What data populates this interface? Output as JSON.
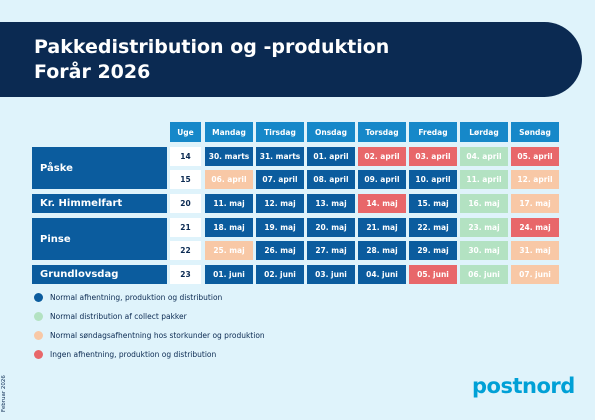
{
  "header": {
    "title_line1": "Pakkedistribution og -produktion",
    "title_line2": "Forår 2026"
  },
  "table": {
    "columns": [
      "Uge",
      "Mandag",
      "Tirsdag",
      "Onsdag",
      "Torsdag",
      "Fredag",
      "Lørdag",
      "Søndag"
    ],
    "groups": [
      {
        "label": "Påske",
        "weeks": [
          {
            "week": "14",
            "cells": [
              {
                "text": "30. marts",
                "color": "#0b5c9e"
              },
              {
                "text": "31. marts",
                "color": "#0b5c9e"
              },
              {
                "text": "01. april",
                "color": "#0b5c9e"
              },
              {
                "text": "02. april",
                "color": "#e8676a"
              },
              {
                "text": "03. april",
                "color": "#e8676a"
              },
              {
                "text": "04. april",
                "color": "#b3e2c2"
              },
              {
                "text": "05. april",
                "color": "#e8676a"
              }
            ]
          },
          {
            "week": "15",
            "cells": [
              {
                "text": "06. april",
                "color": "#f8c8a6"
              },
              {
                "text": "07. april",
                "color": "#0b5c9e"
              },
              {
                "text": "08. april",
                "color": "#0b5c9e"
              },
              {
                "text": "09. april",
                "color": "#0b5c9e"
              },
              {
                "text": "10. april",
                "color": "#0b5c9e"
              },
              {
                "text": "11. april",
                "color": "#b3e2c2"
              },
              {
                "text": "12. april",
                "color": "#f8c8a6"
              }
            ]
          }
        ]
      },
      {
        "label": "Kr. Himmelfart",
        "weeks": [
          {
            "week": "20",
            "cells": [
              {
                "text": "11. maj",
                "color": "#0b5c9e"
              },
              {
                "text": "12. maj",
                "color": "#0b5c9e"
              },
              {
                "text": "13. maj",
                "color": "#0b5c9e"
              },
              {
                "text": "14. maj",
                "color": "#e8676a"
              },
              {
                "text": "15. maj",
                "color": "#0b5c9e"
              },
              {
                "text": "16. maj",
                "color": "#b3e2c2"
              },
              {
                "text": "17. maj",
                "color": "#f8c8a6"
              }
            ]
          }
        ]
      },
      {
        "label": "Pinse",
        "weeks": [
          {
            "week": "21",
            "cells": [
              {
                "text": "18. maj",
                "color": "#0b5c9e"
              },
              {
                "text": "19. maj",
                "color": "#0b5c9e"
              },
              {
                "text": "20. maj",
                "color": "#0b5c9e"
              },
              {
                "text": "21. maj",
                "color": "#0b5c9e"
              },
              {
                "text": "22. maj",
                "color": "#0b5c9e"
              },
              {
                "text": "23. maj",
                "color": "#b3e2c2"
              },
              {
                "text": "24. maj",
                "color": "#e8676a"
              }
            ]
          },
          {
            "week": "22",
            "cells": [
              {
                "text": "25. maj",
                "color": "#f8c8a6"
              },
              {
                "text": "26. maj",
                "color": "#0b5c9e"
              },
              {
                "text": "27. maj",
                "color": "#0b5c9e"
              },
              {
                "text": "28. maj",
                "color": "#0b5c9e"
              },
              {
                "text": "29. maj",
                "color": "#0b5c9e"
              },
              {
                "text": "30. maj",
                "color": "#b3e2c2"
              },
              {
                "text": "31. maj",
                "color": "#f8c8a6"
              }
            ]
          }
        ]
      },
      {
        "label": "Grundlovsdag",
        "weeks": [
          {
            "week": "23",
            "cells": [
              {
                "text": "01. juni",
                "color": "#0b5c9e"
              },
              {
                "text": "02. juni",
                "color": "#0b5c9e"
              },
              {
                "text": "03. juni",
                "color": "#0b5c9e"
              },
              {
                "text": "04. juni",
                "color": "#0b5c9e"
              },
              {
                "text": "05. juni",
                "color": "#e8676a"
              },
              {
                "text": "06. juni",
                "color": "#b3e2c2"
              },
              {
                "text": "07. juni",
                "color": "#f8c8a6"
              }
            ]
          }
        ]
      }
    ]
  },
  "legend": [
    {
      "text": "Normal afhentning, produktion og distribution",
      "color": "#0b5c9e"
    },
    {
      "text": "Normal distribution af collect pakker",
      "color": "#b3e2c2"
    },
    {
      "text": "Normal søndagsafhentning hos storkunder og produktion",
      "color": "#f8c8a6"
    },
    {
      "text": "Ingen afhentning, produktion og distribution",
      "color": "#e8676a"
    }
  ],
  "footer": {
    "date": "Februar 2026",
    "logo": "postnord"
  }
}
